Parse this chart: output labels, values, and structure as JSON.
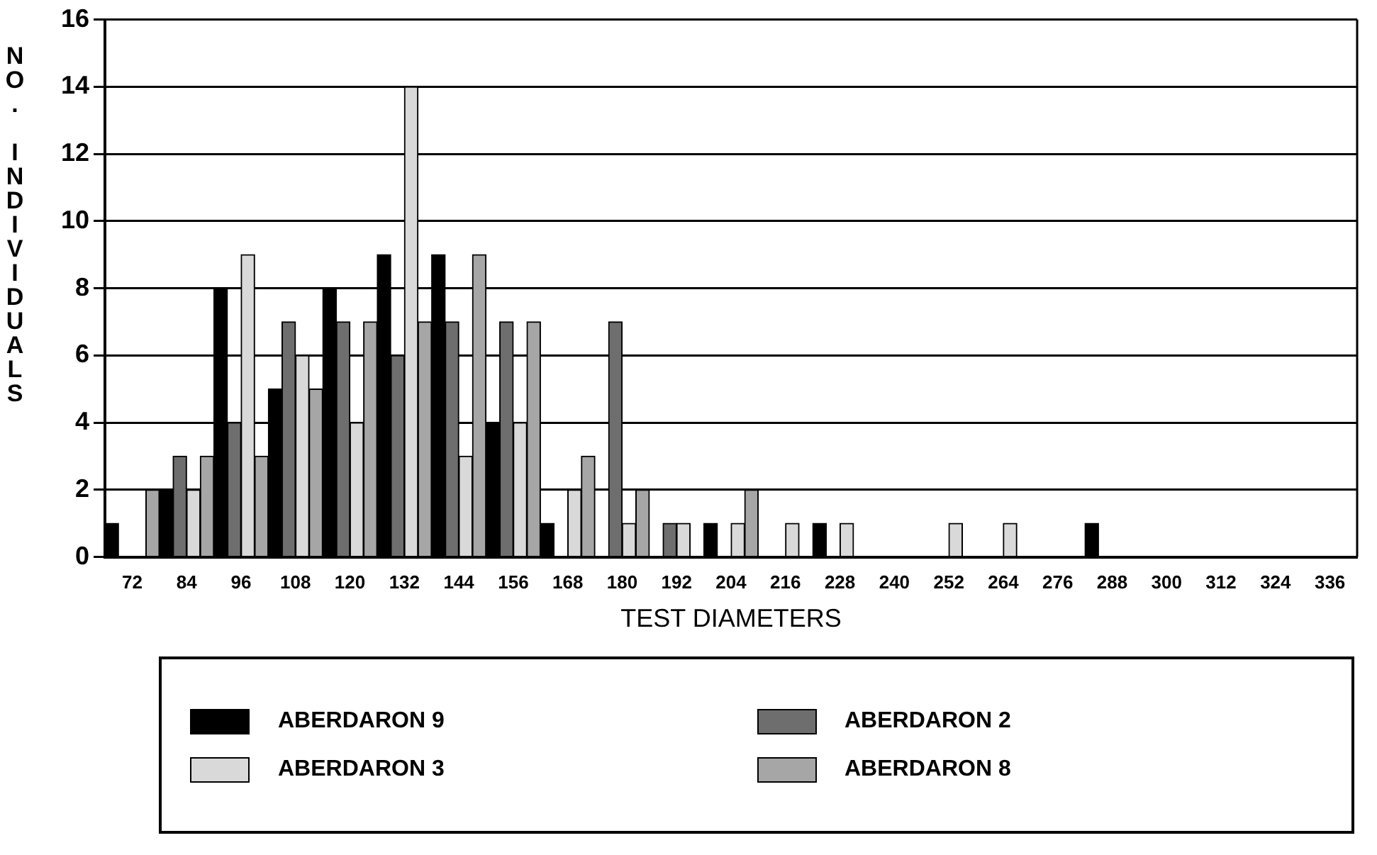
{
  "chart_data": {
    "type": "bar",
    "xlabel": "TEST DIAMETERS",
    "ylabel": "NO. INDIVIDUALS",
    "categories": [
      "72",
      "84",
      "96",
      "108",
      "120",
      "132",
      "144",
      "156",
      "168",
      "180",
      "192",
      "204",
      "216",
      "228",
      "240",
      "252",
      "264",
      "276",
      "288",
      "300",
      "312",
      "324",
      "336"
    ],
    "series": [
      {
        "name": "ABERDARON 9",
        "color": "#000000",
        "values": [
          1,
          2,
          8,
          5,
          8,
          9,
          9,
          4,
          1,
          0,
          0,
          1,
          0,
          1,
          0,
          0,
          0,
          0,
          1,
          0,
          0,
          0,
          0
        ]
      },
      {
        "name": "ABERDARON 2",
        "color": "#6e6e6e",
        "values": [
          0,
          3,
          4,
          7,
          7,
          6,
          7,
          7,
          0,
          7,
          1,
          0,
          0,
          0,
          0,
          0,
          0,
          0,
          0,
          0,
          0,
          0,
          0
        ]
      },
      {
        "name": "ABERDARON 3",
        "color": "#d9d9d9",
        "values": [
          0,
          2,
          9,
          6,
          4,
          14,
          3,
          4,
          2,
          1,
          1,
          1,
          1,
          1,
          0,
          1,
          1,
          0,
          0,
          0,
          0,
          0,
          0
        ]
      },
      {
        "name": "ABERDARON 8",
        "color": "#a6a6a6",
        "values": [
          2,
          3,
          3,
          5,
          7,
          7,
          9,
          7,
          3,
          2,
          0,
          2,
          0,
          0,
          0,
          0,
          0,
          0,
          0,
          0,
          0,
          0,
          0
        ]
      }
    ],
    "ylim": [
      0,
      16
    ],
    "yticks": [
      0,
      2,
      4,
      6,
      8,
      10,
      12,
      14,
      16
    ],
    "grid": "y",
    "legend": "bottom"
  }
}
